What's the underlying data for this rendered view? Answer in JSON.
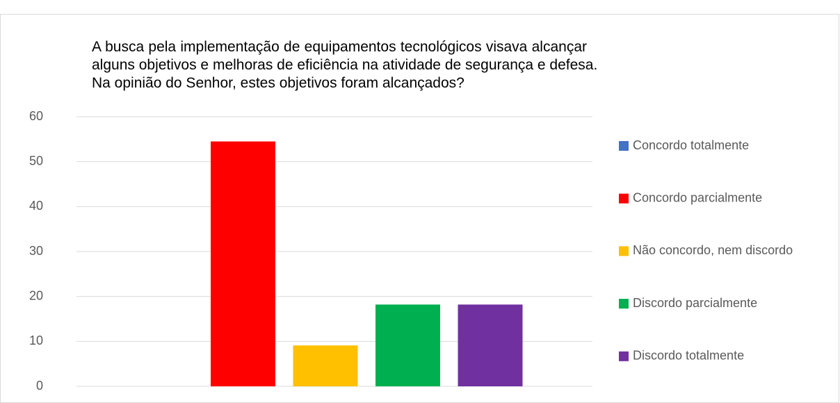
{
  "chart_data": {
    "type": "bar",
    "title": [
      "A busca pela implementação de equipamentos tecnológicos visava alcançar",
      "alguns objetivos e melhoras de eficiência na atividade de segurança e defesa.",
      "Na opinião do Senhor, estes objetivos foram alcançados?"
    ],
    "categories": [
      null
    ],
    "series": [
      {
        "name": "Concordo totalmente",
        "color": "#4472c4",
        "values": [
          0
        ]
      },
      {
        "name": "Concordo parcialmente",
        "color": "#ff0000",
        "values": [
          54.5
        ]
      },
      {
        "name": "Não concordo, nem discordo",
        "color": "#ffc000",
        "values": [
          9.1
        ]
      },
      {
        "name": "Discordo parcialmente",
        "color": "#00b050",
        "values": [
          18.2
        ]
      },
      {
        "name": "Discordo totalmente",
        "color": "#7030a0",
        "values": [
          18.2
        ]
      }
    ],
    "ylim": [
      0,
      60
    ],
    "yticks": [
      0,
      10,
      20,
      30,
      40,
      50,
      60
    ],
    "grid": true,
    "legend": "right"
  }
}
